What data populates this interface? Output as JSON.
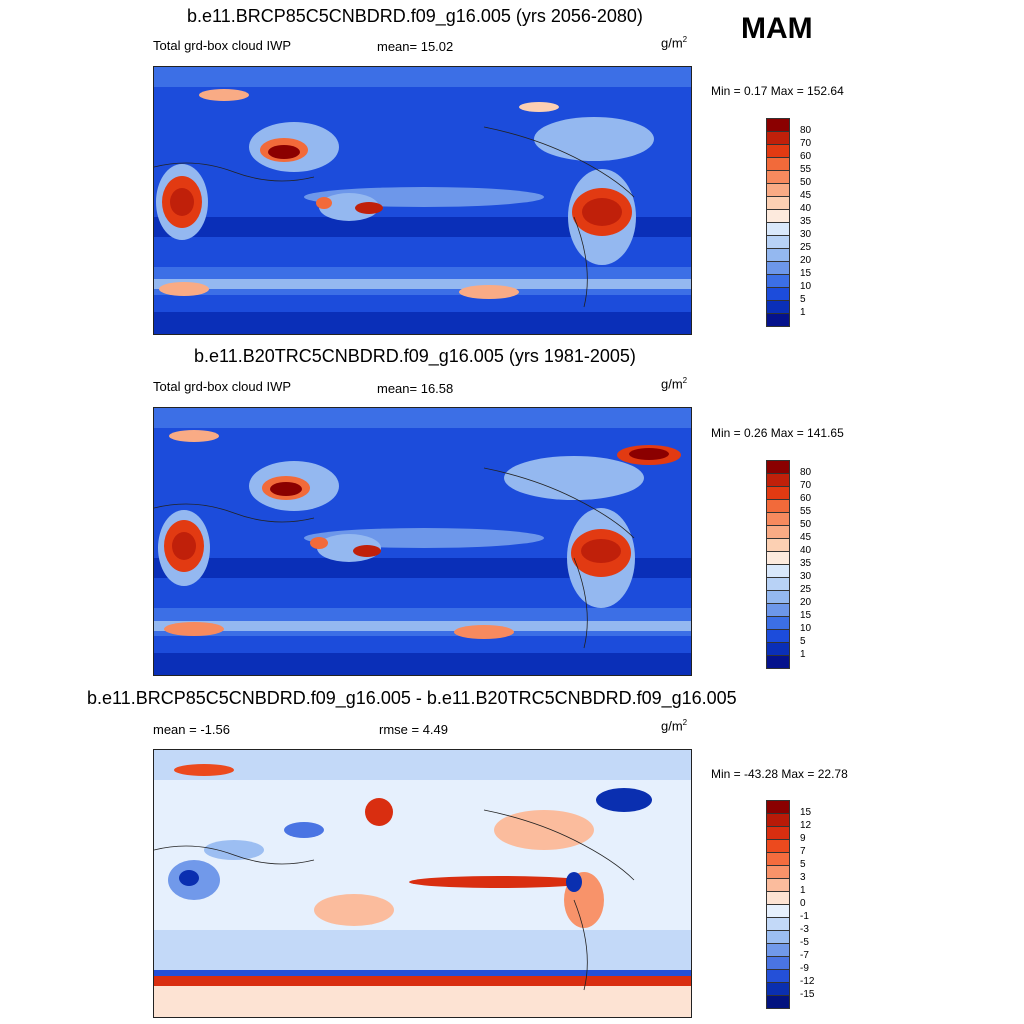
{
  "season": "MAM",
  "panels": [
    {
      "title": "b.e11.BRCP85C5CNBDRD.f09_g16.005 (yrs 2056-2080)",
      "left_label": "Total grd-box cloud IWP",
      "center_label": "mean=  15.02",
      "unit": "g/m",
      "unit_sup": "2",
      "minmax": "Min =   0.17 Max = 152.64",
      "levels": [
        "80",
        "70",
        "60",
        "55",
        "50",
        "45",
        "40",
        "35",
        "30",
        "25",
        "20",
        "15",
        "10",
        "5",
        "1"
      ],
      "colors": [
        "#8b0000",
        "#c0200a",
        "#e23a12",
        "#f26a3a",
        "#f78a5e",
        "#f9ab85",
        "#fcd0b3",
        "#fdeadd",
        "#d9e8fb",
        "#b8d2f6",
        "#94b8f0",
        "#6d97ea",
        "#3c6fe6",
        "#1c4cdb",
        "#0a2fb8",
        "#05128c"
      ]
    },
    {
      "title": "b.e11.B20TRC5CNBDRD.f09_g16.005 (yrs 1981-2005)",
      "left_label": "Total grd-box cloud IWP",
      "center_label": "mean=  16.58",
      "unit": "g/m",
      "unit_sup": "2",
      "minmax": "Min =   0.26 Max = 141.65",
      "levels": [
        "80",
        "70",
        "60",
        "55",
        "50",
        "45",
        "40",
        "35",
        "30",
        "25",
        "20",
        "15",
        "10",
        "5",
        "1"
      ],
      "colors": [
        "#8b0000",
        "#c0200a",
        "#e23a12",
        "#f26a3a",
        "#f78a5e",
        "#f9ab85",
        "#fcd0b3",
        "#fdeadd",
        "#d9e8fb",
        "#b8d2f6",
        "#94b8f0",
        "#6d97ea",
        "#3c6fe6",
        "#1c4cdb",
        "#0a2fb8",
        "#05128c"
      ]
    },
    {
      "title": "b.e11.BRCP85C5CNBDRD.f09_g16.005 - b.e11.B20TRC5CNBDRD.f09_g16.005",
      "left_label": "mean =  -1.56",
      "center_label": "rmse =   4.49",
      "unit": "g/m",
      "unit_sup": "2",
      "minmax": "Min = -43.28 Max =  22.78",
      "levels": [
        "15",
        "12",
        "9",
        "7",
        "5",
        "3",
        "1",
        "0",
        "-1",
        "-3",
        "-5",
        "-7",
        "-9",
        "-12",
        "-15"
      ],
      "colors": [
        "#8b0000",
        "#b81a08",
        "#d92e10",
        "#ec4a1e",
        "#f46c3e",
        "#f8936a",
        "#fbbc9d",
        "#fde3d3",
        "#e6f0fd",
        "#c3d9f8",
        "#9cbef2",
        "#7199ea",
        "#4a74e3",
        "#2450d8",
        "#0a2fb0",
        "#03137f"
      ]
    }
  ]
}
